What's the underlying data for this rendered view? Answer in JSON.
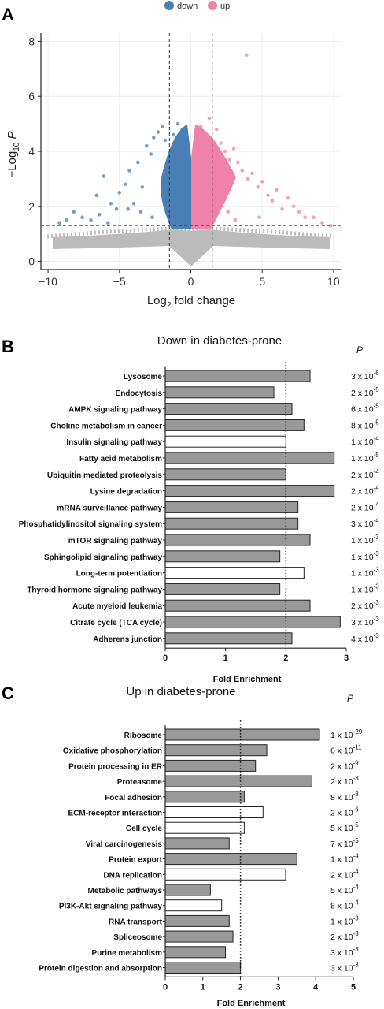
{
  "panels": {
    "a": {
      "letter": "A"
    },
    "b": {
      "letter": "B"
    },
    "c": {
      "letter": "C"
    }
  },
  "colors": {
    "down": "#4a7fb5",
    "up": "#ee82aa",
    "ns": "#bbbbbb",
    "bar_fill": "#999999",
    "bar_open": "#ffffff"
  },
  "chart_data": [
    {
      "type": "scatter",
      "panel": "A",
      "legend": {
        "position": "top",
        "entries": [
          "down",
          "up"
        ]
      },
      "xlabel": "Log2 fold change",
      "xlabel_main": "Log",
      "xlabel_sub": "2",
      "xlabel_rest": " fold change",
      "ylabel_main": "−Log",
      "ylabel_sub": "10",
      "ylabel_rest": " P",
      "xlim": [
        -10.5,
        10.5
      ],
      "ylim": [
        -0.3,
        8.3
      ],
      "x_ticks": [
        -10,
        -5,
        0,
        5,
        10
      ],
      "y_ticks": [
        0,
        2,
        4,
        6,
        8
      ],
      "grid": true,
      "vlines": [
        -1.5,
        1.5
      ],
      "hline": 1.3,
      "points": {
        "down": [
          [
            -9.2,
            1.4
          ],
          [
            -8.7,
            1.5
          ],
          [
            -8.2,
            1.8
          ],
          [
            -7.6,
            1.6
          ],
          [
            -7.0,
            1.5
          ],
          [
            -6.6,
            2.4
          ],
          [
            -6.1,
            3.1
          ],
          [
            -6.4,
            1.7
          ],
          [
            -5.6,
            2.1
          ],
          [
            -5.2,
            1.9
          ],
          [
            -5.0,
            2.5
          ],
          [
            -4.6,
            2.8
          ],
          [
            -4.3,
            3.3
          ],
          [
            -4.4,
            1.9
          ],
          [
            -4.0,
            2.1
          ],
          [
            -3.7,
            3.6
          ],
          [
            -3.4,
            2.7
          ],
          [
            -3.1,
            4.2
          ],
          [
            -2.8,
            3.9
          ],
          [
            -2.6,
            4.5
          ],
          [
            -2.3,
            4.7
          ],
          [
            -2.0,
            4.9
          ],
          [
            -1.8,
            4.4
          ],
          [
            -1.2,
            4.6
          ],
          [
            -0.9,
            5.0
          ],
          [
            -0.6,
            4.8
          ],
          [
            -0.4,
            3.9
          ],
          [
            -0.2,
            3.2
          ],
          [
            -1.0,
            2.0
          ],
          [
            -2.7,
            1.6
          ],
          [
            -3.5,
            1.8
          ],
          [
            -5.8,
            1.4
          ]
        ],
        "up": [
          [
            0.2,
            3.4
          ],
          [
            0.4,
            4.1
          ],
          [
            0.7,
            4.9
          ],
          [
            1.0,
            4.6
          ],
          [
            1.3,
            5.2
          ],
          [
            1.8,
            4.8
          ],
          [
            2.1,
            4.3
          ],
          [
            2.4,
            4.0
          ],
          [
            2.7,
            3.7
          ],
          [
            3.0,
            4.1
          ],
          [
            3.3,
            3.6
          ],
          [
            3.6,
            3.3
          ],
          [
            4.0,
            3.0
          ],
          [
            4.3,
            3.2
          ],
          [
            4.7,
            2.7
          ],
          [
            5.0,
            2.9
          ],
          [
            5.4,
            2.4
          ],
          [
            5.7,
            2.2
          ],
          [
            6.0,
            2.6
          ],
          [
            6.4,
            1.9
          ],
          [
            6.8,
            2.3
          ],
          [
            7.2,
            2.0
          ],
          [
            7.6,
            1.8
          ],
          [
            8.0,
            1.6
          ],
          [
            8.6,
            1.6
          ],
          [
            9.2,
            1.4
          ],
          [
            9.8,
            1.3
          ],
          [
            3.9,
            7.5
          ],
          [
            1.2,
            2.0
          ],
          [
            2.6,
            1.8
          ],
          [
            4.8,
            1.6
          ],
          [
            3.1,
            1.5
          ]
        ]
      }
    },
    {
      "type": "bar",
      "panel": "B",
      "orientation": "horizontal",
      "title": "Down in diabetes-prone",
      "xlabel": "Fold Enrichment",
      "p_header": "P",
      "xlim": [
        0,
        3
      ],
      "x_ticks": [
        0,
        1,
        2,
        3
      ],
      "refline": 2,
      "categories": [
        "Lysosome",
        "Endocytosis",
        "AMPK signaling pathway",
        "Choline metabolism in cancer",
        "Insulin signaling pathway",
        "Fatty acid metabolism",
        "Ubiquitin mediated proteolysis",
        "Lysine degradation",
        "mRNA surveillance pathway",
        "Phosphatidylinositol signaling system",
        "mTOR signaling pathway",
        "Sphingolipid signaling pathway",
        "Long-term potentiation",
        "Thyroid hormone signaling pathway",
        "Acute myeloid leukemia",
        "Citrate cycle (TCA cycle)",
        "Adherens junction"
      ],
      "values": [
        2.4,
        1.8,
        2.1,
        2.3,
        2.0,
        2.8,
        2.0,
        2.8,
        2.2,
        2.2,
        2.4,
        1.9,
        2.3,
        1.9,
        2.4,
        2.9,
        2.1
      ],
      "filled": [
        true,
        true,
        true,
        true,
        false,
        true,
        true,
        true,
        true,
        true,
        true,
        true,
        false,
        true,
        true,
        true,
        true
      ],
      "p_mantissa": [
        "3",
        "2",
        "6",
        "8",
        "1",
        "1",
        "2",
        "2",
        "2",
        "3",
        "1",
        "1",
        "1",
        "1",
        "2",
        "3",
        "4"
      ],
      "p_exponent": [
        "-6",
        "-5",
        "-5",
        "-5",
        "-4",
        "-5",
        "-4",
        "-4",
        "-4",
        "-4",
        "-3",
        "-3",
        "-3",
        "-3",
        "-3",
        "-3",
        "-3"
      ]
    },
    {
      "type": "bar",
      "panel": "C",
      "orientation": "horizontal",
      "title": "Up in diabetes-prone",
      "xlabel": "Fold Enrichment",
      "p_header": "P",
      "xlim": [
        0,
        5
      ],
      "x_ticks": [
        0,
        1,
        2,
        3,
        4,
        5
      ],
      "refline": 2,
      "categories": [
        "Ribosome",
        "Oxidative phosphorylation",
        "Protein processing in ER",
        "Proteasome",
        "Focal adhesion",
        "ECM-receptor interaction",
        "Cell cycle",
        "Viral carcinogenesis",
        "Protein export",
        "DNA replication",
        "Metabolic pathways",
        "PI3K-Akt signaling pathway",
        "RNA transport",
        "Spliceosome",
        "Purine metabolism",
        "Protein digestion and absorption"
      ],
      "values": [
        4.1,
        2.7,
        2.4,
        3.9,
        2.1,
        2.6,
        2.1,
        1.7,
        3.5,
        3.2,
        1.2,
        1.5,
        1.7,
        1.8,
        1.6,
        2.0
      ],
      "filled": [
        true,
        true,
        true,
        true,
        true,
        false,
        false,
        true,
        true,
        false,
        true,
        false,
        true,
        true,
        true,
        true
      ],
      "p_mantissa": [
        "1",
        "6",
        "2",
        "2",
        "8",
        "2",
        "5",
        "7",
        "1",
        "2",
        "5",
        "8",
        "1",
        "2",
        "3",
        "3"
      ],
      "p_exponent": [
        "-29",
        "-11",
        "-9",
        "-8",
        "-8",
        "-6",
        "-5",
        "-5",
        "-4",
        "-4",
        "-4",
        "-4",
        "-3",
        "-3",
        "-3",
        "-3"
      ]
    }
  ]
}
